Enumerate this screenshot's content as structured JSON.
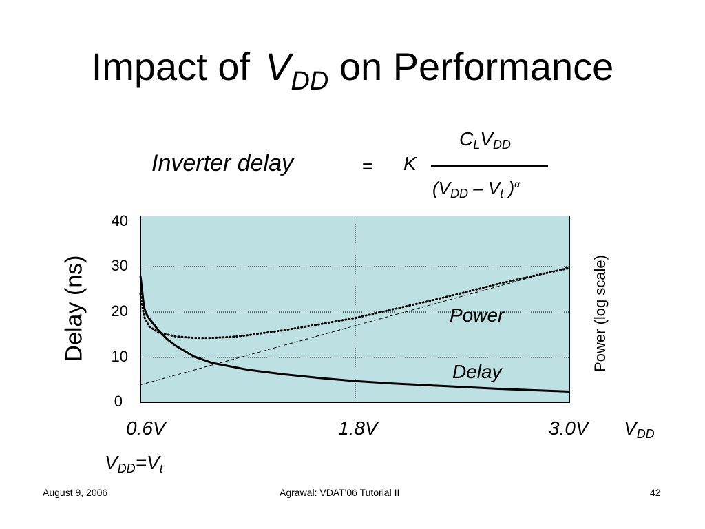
{
  "slide": {
    "title_prefix": "Impact of",
    "title_var": "V",
    "title_var_sub": "DD",
    "title_suffix": "on Performance"
  },
  "equation": {
    "lhs": "Inverter delay",
    "equals": "=",
    "constant": "K",
    "num_c": "C",
    "num_c_sub": "L",
    "num_v": "V",
    "num_v_sub": "DD",
    "den_open": "(V",
    "den_v_sub": "DD",
    "den_minus": " – V",
    "den_t_sub": "t",
    "den_close": " )",
    "den_exp": "α"
  },
  "chart_data": {
    "type": "line",
    "ylabel": "Delay (ns)",
    "y2label": "Power (log scale)",
    "yticks": [
      "40",
      "30",
      "20",
      "10",
      "0"
    ],
    "ylim": [
      0,
      40
    ],
    "xlim": [
      0.6,
      3.0
    ],
    "xticks": [
      {
        "value": 0.6,
        "label": "0.6V"
      },
      {
        "value": 1.8,
        "label": "1.8V"
      },
      {
        "value": 3.0,
        "label": "3.0V"
      }
    ],
    "xname": "V",
    "xname_sub": "DD",
    "vt_annotation": {
      "v": "V",
      "sub1": "DD",
      "mid": "=V",
      "sub2": "t"
    },
    "grid": {
      "horizontal": [
        10,
        20,
        30
      ],
      "vertical": [
        1.8
      ]
    },
    "series": [
      {
        "name": "Delay",
        "style": "solid",
        "x": [
          0.6,
          0.62,
          0.64,
          0.66,
          0.7,
          0.75,
          0.8,
          0.9,
          1.0,
          1.2,
          1.4,
          1.6,
          1.8,
          2.0,
          2.2,
          2.4,
          2.6,
          2.8,
          3.0
        ],
        "y": [
          28,
          21,
          19,
          18,
          16,
          14,
          12.5,
          10.2,
          8.8,
          7.3,
          6.3,
          5.5,
          4.8,
          4.3,
          3.9,
          3.5,
          3.1,
          2.8,
          2.5
        ]
      },
      {
        "name": "Power",
        "style": "dotted",
        "x": [
          0.6,
          0.62,
          0.65,
          0.7,
          0.8,
          0.9,
          1.0,
          1.1,
          1.2,
          1.4,
          1.6,
          1.8,
          2.0,
          2.2,
          2.4,
          2.6,
          2.8,
          3.0
        ],
        "y": [
          24,
          19,
          16.8,
          15.5,
          14.6,
          14.3,
          14.3,
          14.5,
          14.9,
          16.0,
          17.3,
          18.7,
          20.5,
          22.3,
          24.2,
          26.2,
          28.0,
          29.7
        ]
      },
      {
        "style": "dashed",
        "x": [
          0.6,
          3.0
        ],
        "y": [
          4,
          30
        ]
      }
    ]
  },
  "footer": {
    "date": "August 9, 2006",
    "center": "Agrawal: VDAT'06 Tutorial II",
    "page": "42"
  }
}
